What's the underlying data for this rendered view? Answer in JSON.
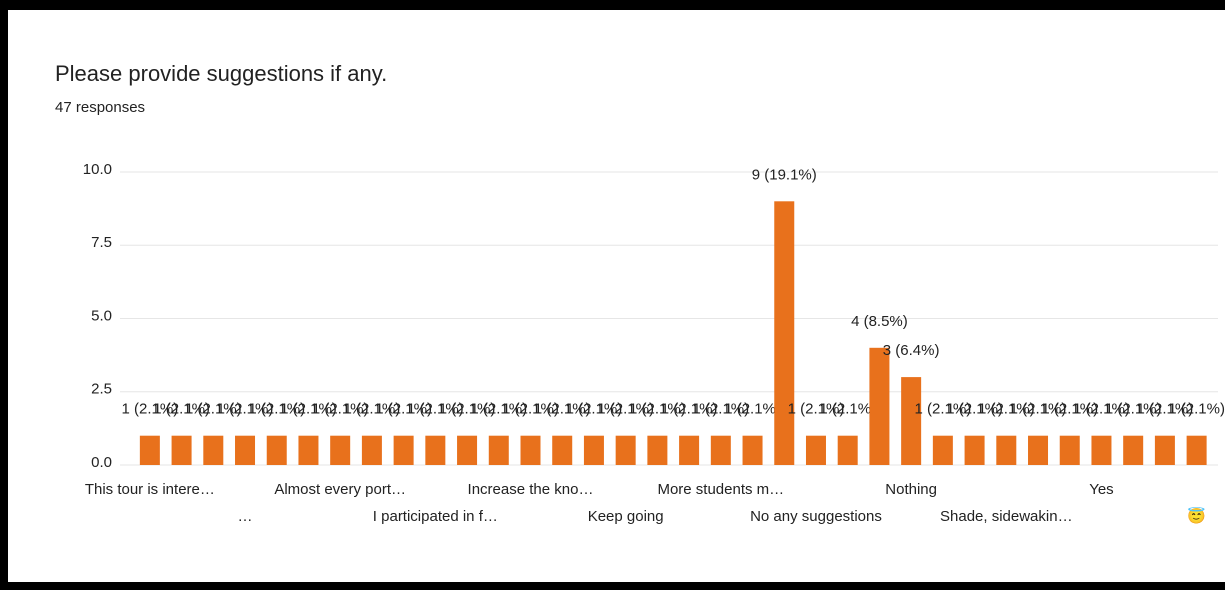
{
  "chart_data": {
    "type": "bar",
    "title": "Please provide suggestions if any.",
    "subtitle": "47 responses",
    "categories": [
      "This tour is intere…",
      null,
      null,
      "…",
      null,
      null,
      "Almost every port…",
      null,
      null,
      "I participated in f…",
      null,
      null,
      "Increase the kno…",
      null,
      null,
      "Keep going",
      null,
      null,
      "More students m…",
      null,
      null,
      "No any suggestions",
      null,
      null,
      "Nothing",
      null,
      null,
      "Shade, sidewakin…",
      null,
      null,
      "Yes",
      null,
      null,
      "😇"
    ],
    "values": [
      1,
      1,
      1,
      1,
      1,
      1,
      1,
      1,
      1,
      1,
      1,
      1,
      1,
      1,
      1,
      1,
      1,
      1,
      1,
      1,
      9,
      1,
      1,
      4,
      3,
      1,
      1,
      1,
      1,
      1,
      1,
      1,
      1,
      1
    ],
    "value_labels": [
      "1 (2.1%)",
      "1 (2.1%)",
      "1 (2.1%)",
      "1 (2.1%)",
      "1 (2.1%)",
      "1 (2.1%)",
      "1 (2.1%)",
      "1 (2.1%)",
      "1 (2.1%)",
      "1 (2.1%)",
      "1 (2.1%)",
      "1 (2.1%)",
      "1 (2.1%)",
      "1 (2.1%)",
      "1 (2.1%)",
      "1 (2.1%)",
      "1 (2.1%)",
      "1 (2.1%)",
      "1 (2.1%)",
      "1 (2.1%)",
      "9 (19.1%)",
      "1 (2.1%)",
      "1 (2.1%)",
      "4 (8.5%)",
      "3 (6.4%)",
      "1 (2.1%)",
      "1 (2.1%)",
      "1 (2.1%)",
      "1 (2.1%)",
      "1 (2.1%)",
      "1 (2.1%)",
      "1 (2.1%)",
      "1 (2.1%)",
      "1 (2.1%)"
    ],
    "color": "#e8711c",
    "ylim": [
      0,
      10
    ],
    "yticks": [
      {
        "value": 0,
        "label": "0.0"
      },
      2.5,
      {
        "value": 5,
        "label": "5.0"
      },
      7.5,
      {
        "value": 10,
        "label": "10.0"
      }
    ],
    "grid": true
  }
}
